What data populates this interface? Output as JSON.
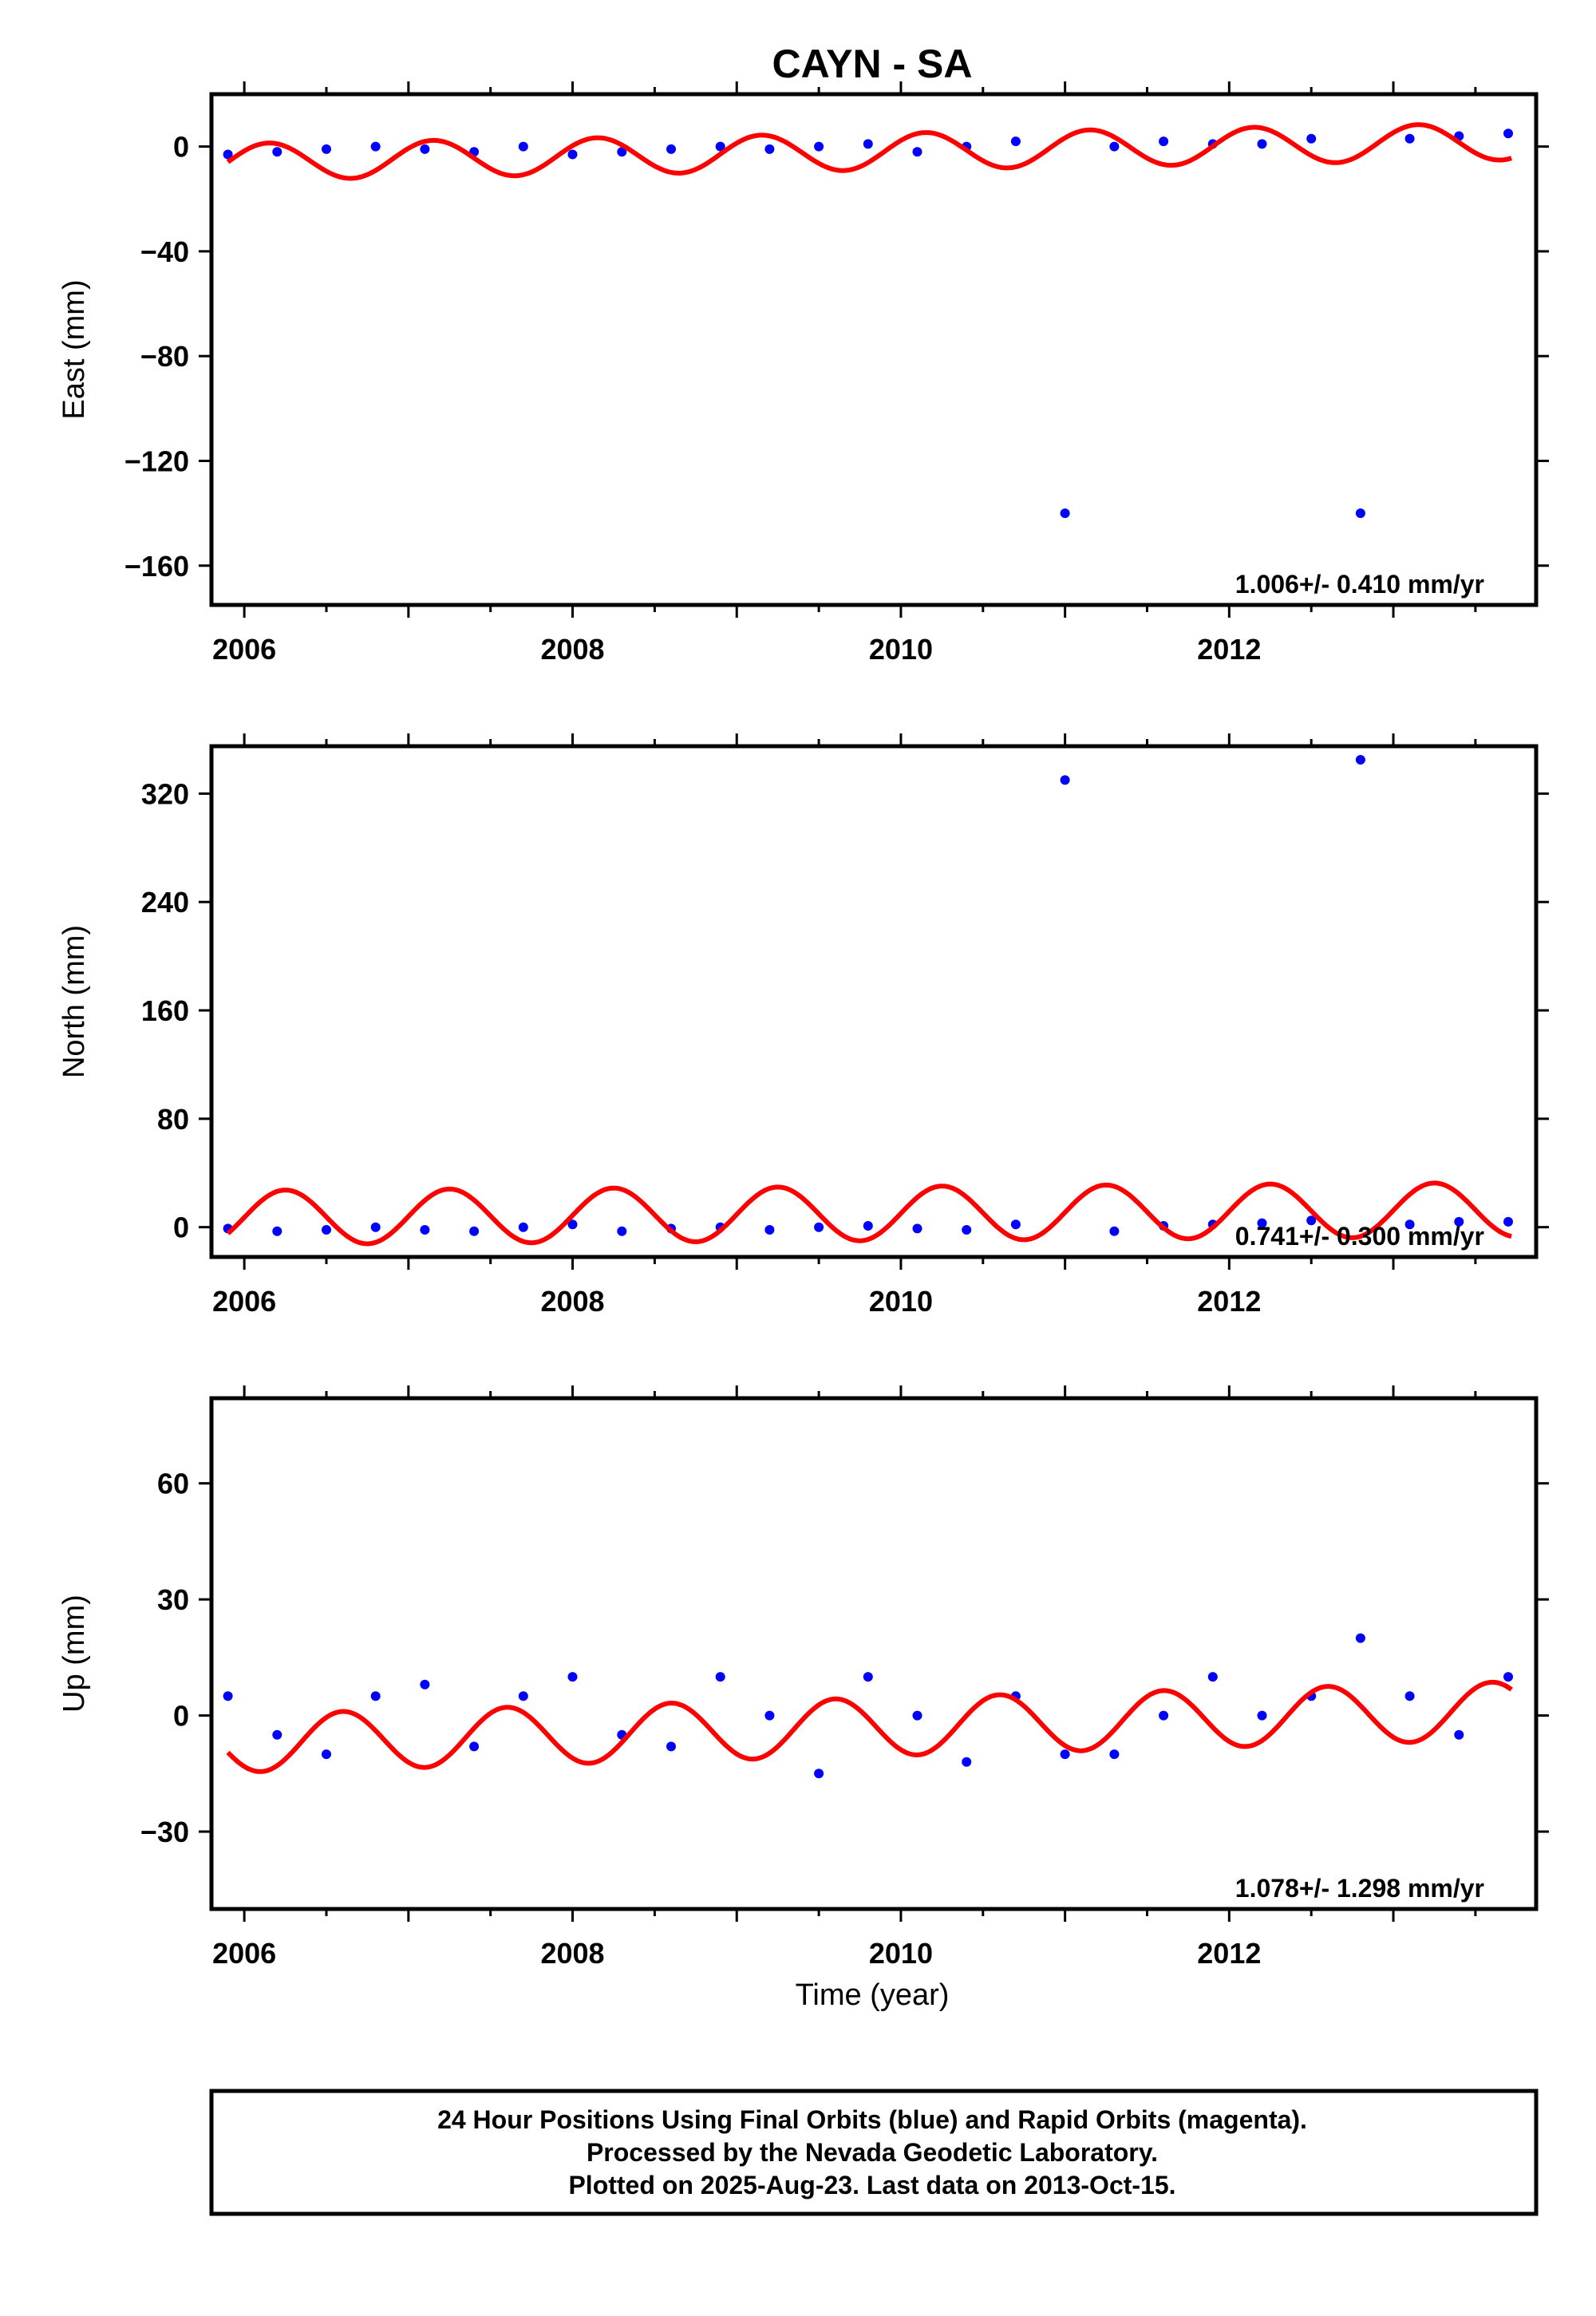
{
  "title": "CAYN - SA",
  "chart_data": [
    {
      "type": "scatter",
      "ylabel": "East (mm)",
      "xlim": [
        2005.8,
        2013.87
      ],
      "ylim": [
        -175,
        20
      ],
      "xticks": [
        2006,
        2008,
        2010,
        2012
      ],
      "yticks": [
        0,
        -40,
        -80,
        -120,
        -160
      ],
      "rate_label": "1.006+/- 0.410 mm/yr",
      "model": {
        "offset": -2,
        "amp": 7,
        "phase": 0.9,
        "trend": 1.0
      },
      "series": [
        {
          "x": [
            2005.9,
            2006.2,
            2006.5,
            2006.8,
            2007.1,
            2007.4,
            2007.7,
            2008.0,
            2008.3,
            2008.6,
            2008.9,
            2009.2,
            2009.5,
            2009.8,
            2010.1,
            2010.4,
            2010.7,
            2011.0,
            2011.3,
            2011.6,
            2011.9,
            2012.2,
            2012.5,
            2012.8,
            2013.1,
            2013.4,
            2013.7
          ],
          "values": [
            -3,
            -2,
            -1,
            0,
            -1,
            -2,
            0,
            -3,
            -2,
            -1,
            0,
            -1,
            0,
            1,
            -2,
            0,
            2,
            -140,
            0,
            2,
            1,
            1,
            3,
            -140,
            3,
            4,
            5
          ]
        }
      ]
    },
    {
      "type": "scatter",
      "ylabel": "North (mm)",
      "xlim": [
        2005.8,
        2013.87
      ],
      "ylim": [
        -22,
        355
      ],
      "xticks": [
        2006,
        2008,
        2010,
        2012
      ],
      "yticks": [
        0,
        80,
        160,
        240,
        320
      ],
      "rate_label": "0.741+/- 0.300 mm/yr",
      "model": {
        "offset": 10,
        "amp": 20,
        "phase": 0.0,
        "trend": 0.74
      },
      "series": [
        {
          "x": [
            2005.9,
            2006.2,
            2006.5,
            2006.8,
            2007.1,
            2007.4,
            2007.7,
            2008.0,
            2008.3,
            2008.6,
            2008.9,
            2009.2,
            2009.5,
            2009.8,
            2010.1,
            2010.4,
            2010.7,
            2011.0,
            2011.3,
            2011.6,
            2011.9,
            2012.2,
            2012.5,
            2012.8,
            2013.1,
            2013.4,
            2013.7
          ],
          "values": [
            -1,
            -3,
            -2,
            0,
            -2,
            -3,
            0,
            2,
            -3,
            -1,
            0,
            -2,
            0,
            1,
            -1,
            -2,
            2,
            330,
            -3,
            1,
            2,
            3,
            5,
            345,
            2,
            4,
            4
          ]
        }
      ]
    },
    {
      "type": "scatter",
      "ylabel": "Up (mm)",
      "xlabel": "Time (year)",
      "xlim": [
        2005.8,
        2013.87
      ],
      "ylim": [
        -50,
        82
      ],
      "xticks": [
        2006,
        2008,
        2010,
        2012
      ],
      "yticks": [
        60,
        30,
        0,
        -30
      ],
      "rate_label": "1.078+/- 1.298 mm/yr",
      "model": {
        "offset": -3,
        "amp": 7.5,
        "phase": 0.35,
        "trend": 1.08
      },
      "series": [
        {
          "x": [
            2005.9,
            2006.2,
            2006.5,
            2006.8,
            2007.1,
            2007.4,
            2007.7,
            2008.0,
            2008.3,
            2008.6,
            2008.9,
            2009.2,
            2009.5,
            2009.8,
            2010.1,
            2010.4,
            2010.7,
            2011.0,
            2011.3,
            2011.6,
            2011.9,
            2012.2,
            2012.5,
            2012.8,
            2013.1,
            2013.4,
            2013.7
          ],
          "values": [
            5,
            -5,
            -10,
            5,
            8,
            -8,
            5,
            10,
            -5,
            -8,
            10,
            0,
            -15,
            10,
            0,
            -12,
            5,
            -10,
            -10,
            0,
            10,
            0,
            5,
            20,
            5,
            -5,
            10
          ]
        }
      ]
    }
  ],
  "caption": {
    "line1": "24 Hour Positions Using Final Orbits (blue) and Rapid Orbits (magenta).",
    "line2": "Processed by the Nevada Geodetic Laboratory.",
    "line3": "Plotted on 2025-Aug-23. Last data on 2013-Oct-15."
  },
  "colors": {
    "points": "#0000ff",
    "model": "#ff0000",
    "frame": "#000000"
  }
}
